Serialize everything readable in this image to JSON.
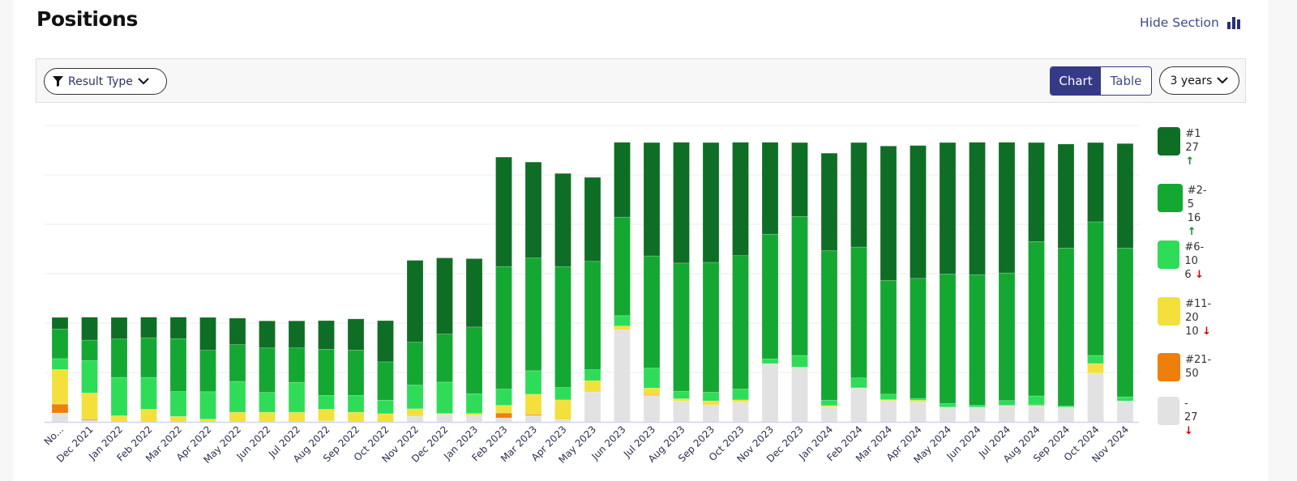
{
  "header": {
    "title": "Positions",
    "hide_section": "Hide Section",
    "hide_icon": "bar-chart-icon"
  },
  "toolbar": {
    "result_type": "Result Type",
    "chart": "Chart",
    "table": "Table",
    "period": "3 years",
    "active_view": "Chart"
  },
  "colors": {
    "#1": "#0f6e25",
    "#2-5": "#14a833",
    "#6-10": "#2fdc58",
    "#11-20": "#f3e03c",
    "#21-50": "#ef7f0c",
    "-": "#e2e2e2",
    "accent": "#353a86"
  },
  "legend": [
    {
      "label": "#1",
      "value": "27",
      "trend": "up"
    },
    {
      "label": "#2-5",
      "value": "16",
      "trend": "up"
    },
    {
      "label": "#6-10",
      "value": "6",
      "trend": "down"
    },
    {
      "label": "#11-20",
      "value": "10",
      "trend": "down"
    },
    {
      "label": "#21-50",
      "value": "",
      "trend": ""
    },
    {
      "label": "-",
      "value": "27",
      "trend": "down"
    }
  ],
  "chart_data": {
    "type": "bar",
    "stacked": true,
    "title": "",
    "xlabel": "",
    "ylabel": "",
    "ylim": [
      0,
      120
    ],
    "grid": true,
    "legend_position": "right",
    "categories": [
      "No...",
      "Dec 2021",
      "Jan 2022",
      "Feb 2022",
      "Mar 2022",
      "Apr 2022",
      "May 2022",
      "Jun 2022",
      "Jul 2022",
      "Aug 2022",
      "Sep 2022",
      "Oct 2022",
      "Nov 2022",
      "Dec 2022",
      "Jan 2023",
      "Feb 2023",
      "Mar 2023",
      "Apr 2023",
      "May 2023",
      "Jun 2023",
      "Jul 2023",
      "Aug 2023",
      "Sep 2023",
      "Oct 2023",
      "Nov 2023",
      "Dec 2023",
      "Jan 2024",
      "Feb 2024",
      "Mar 2024",
      "Apr 2024",
      "May 2024",
      "Jun 2024",
      "Jul 2024",
      "Aug 2024",
      "Sep 2024",
      "Oct 2024",
      "Nov 2024"
    ],
    "series": [
      {
        "name": "#1",
        "values": [
          4.7,
          9.3,
          8.7,
          8.3,
          8.7,
          13.3,
          10.7,
          10.9,
          10.9,
          11.6,
          12.6,
          16.7,
          33.1,
          30.8,
          27.7,
          44.3,
          38.8,
          37.7,
          34,
          30.3,
          45.9,
          48.9,
          48.5,
          45.9,
          37.2,
          29.9,
          39.5,
          42.3,
          54.4,
          53.8,
          53.2,
          53.6,
          52.9,
          40.1,
          42.1,
          32.1,
          42.3
        ]
      },
      {
        "name": "#2-5",
        "values": [
          12,
          8.3,
          15.6,
          16.1,
          21.4,
          16.8,
          14.9,
          18.1,
          14,
          18.7,
          18.4,
          15.5,
          17.4,
          19.5,
          27,
          49.6,
          45.7,
          49,
          43.9,
          39.9,
          45.4,
          51.9,
          52.6,
          54,
          50.5,
          56.3,
          60.5,
          53,
          46.1,
          48.6,
          52.5,
          52.9,
          51.7,
          62.5,
          64,
          54.1,
          60.3
        ]
      },
      {
        "name": "#6-10",
        "values": [
          4.4,
          13.1,
          15.5,
          12.9,
          10.1,
          11.1,
          12.5,
          8,
          12.1,
          5.6,
          6.8,
          5.5,
          9.6,
          12.7,
          8,
          6.6,
          9.5,
          5,
          4.4,
          4.2,
          8.1,
          3,
          3.5,
          4.4,
          1.9,
          4.7,
          2.2,
          4,
          2.2,
          0.7,
          1.4,
          0.7,
          1.9,
          3.6,
          0.4,
          3.3,
          1.6
        ]
      },
      {
        "name": "#11-20",
        "values": [
          14,
          10.6,
          2.5,
          5.1,
          2.2,
          1.1,
          3.9,
          3.9,
          3.9,
          4.7,
          3.9,
          3.3,
          3,
          0.3,
          0.7,
          3.1,
          8.2,
          8,
          4.6,
          1.5,
          2.7,
          0.9,
          1.6,
          0.9,
          0,
          0,
          0.5,
          0,
          0.4,
          0.8,
          0,
          0,
          0,
          0,
          0,
          3.9,
          0
        ]
      },
      {
        "name": "#21-50",
        "values": [
          3.6,
          0.4,
          0,
          0,
          0,
          0,
          0,
          0,
          0,
          0,
          0,
          0,
          0,
          0,
          0,
          2,
          0.4,
          0,
          0,
          0,
          0.3,
          0,
          0,
          0,
          0,
          0,
          0,
          0,
          0,
          0,
          0,
          0,
          0,
          0.3,
          0,
          0,
          0
        ]
      },
      {
        "name": "-",
        "values": [
          3.6,
          0.7,
          0,
          0,
          0,
          0,
          0,
          0,
          0,
          0.4,
          0,
          0,
          2.3,
          3.1,
          2.7,
          1.6,
          2.6,
          0.9,
          12.1,
          37.3,
          10.7,
          8.5,
          6.9,
          8,
          23.6,
          22.2,
          6.1,
          13.8,
          8.6,
          8,
          6,
          6,
          6.7,
          6.6,
          6,
          19.7,
          8.5
        ]
      }
    ]
  }
}
